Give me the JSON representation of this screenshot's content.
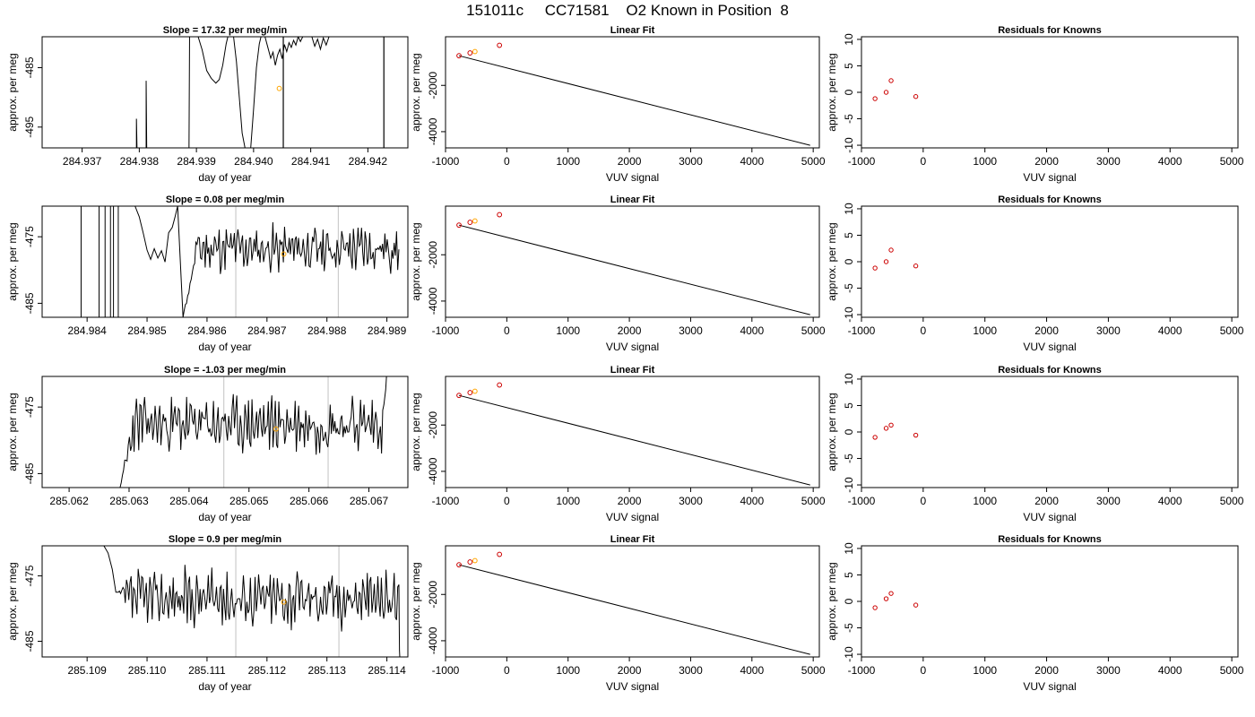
{
  "figure": {
    "title": "151011c     CC71581    O2 Known in Position  8"
  },
  "chart_data": [
    {
      "type": "line",
      "panel": "timeseries",
      "row": 1,
      "title": "Slope =  17.32  per meg/min",
      "xlabel": "day of year",
      "ylabel": "approx. per meg",
      "xlim": [
        284.9363,
        284.9427
      ],
      "ylim": [
        -498.5,
        -479.8
      ],
      "xticks": [
        284.937,
        284.938,
        284.939,
        284.94,
        284.941,
        284.942
      ],
      "xtick_labels": [
        "284.937",
        "284.938",
        "284.939",
        "284.940",
        "284.941",
        "284.942"
      ],
      "yticks": [
        -485,
        -495
      ],
      "ytick_labels": [
        "-485",
        "-495"
      ],
      "vlines": [
        284.94052,
        284.94228
      ],
      "vline_color": "#000000",
      "known_point": {
        "x": 284.94045,
        "y": -488.5,
        "color": "#ffa500"
      },
      "series": [
        {
          "color": "#000000",
          "points": [
            [
              284.93795,
              -498.5
            ],
            [
              284.93795,
              -493.6
            ],
            [
              284.93796,
              -498.5
            ],
            [
              284.93812,
              -498.5
            ],
            [
              284.93812,
              -487.2
            ],
            [
              284.93813,
              -498.5
            ],
            [
              284.93887,
              -498.5
            ],
            [
              284.93888,
              -479.8
            ],
            [
              284.93903,
              -479.8
            ],
            [
              284.9391,
              -482.0
            ],
            [
              284.93918,
              -485.5
            ],
            [
              284.93926,
              -486.8
            ],
            [
              284.93934,
              -487.6
            ],
            [
              284.9394,
              -487.0
            ],
            [
              284.93946,
              -484.6
            ],
            [
              284.93952,
              -481.0
            ],
            [
              284.93955,
              -479.8
            ],
            [
              284.93965,
              -479.8
            ],
            [
              284.9397,
              -484.0
            ],
            [
              284.93975,
              -490.0
            ],
            [
              284.9398,
              -496.0
            ],
            [
              284.93985,
              -498.5
            ],
            [
              284.93995,
              -498.5
            ],
            [
              284.94,
              -492.0
            ],
            [
              284.94005,
              -485.0
            ],
            [
              284.9401,
              -481.0
            ],
            [
              284.94013,
              -479.8
            ],
            [
              284.9402,
              -479.8
            ],
            [
              284.94025,
              -481.6
            ],
            [
              284.9403,
              -483.4
            ],
            [
              284.94034,
              -482.4
            ],
            [
              284.94038,
              -484.6
            ],
            [
              284.94042,
              -482.9
            ],
            [
              284.94046,
              -481.9
            ],
            [
              284.9405,
              -483.5
            ],
            [
              284.94054,
              -481.1
            ],
            [
              284.94058,
              -482.3
            ],
            [
              284.94062,
              -480.8
            ],
            [
              284.94066,
              -481.6
            ],
            [
              284.9407,
              -480.4
            ],
            [
              284.94074,
              -481.2
            ],
            [
              284.94078,
              -479.8
            ],
            [
              284.94082,
              -480.6
            ],
            [
              284.94086,
              -479.8
            ],
            [
              284.94102,
              -479.8
            ],
            [
              284.94107,
              -481.4
            ],
            [
              284.94112,
              -480.2
            ],
            [
              284.94117,
              -481.9
            ],
            [
              284.94122,
              -480.0
            ],
            [
              284.94127,
              -481.2
            ],
            [
              284.94132,
              -479.8
            ]
          ]
        }
      ]
    },
    {
      "type": "line",
      "panel": "timeseries",
      "row": 2,
      "title": "Slope =  0.08  per meg/min",
      "xlabel": "day of year",
      "ylabel": "approx. per meg",
      "xlim": [
        284.98325,
        284.98935
      ],
      "ylim": [
        -487.1,
        -470.4
      ],
      "xticks": [
        284.984,
        284.985,
        284.986,
        284.987,
        284.988,
        284.989
      ],
      "xtick_labels": [
        "284.984",
        "284.985",
        "284.986",
        "284.987",
        "284.988",
        "284.989"
      ],
      "yticks": [
        -475,
        -485
      ],
      "ytick_labels": [
        "-475",
        "-485"
      ],
      "vlines": [
        284.98648,
        284.98819
      ],
      "vline_color": "#cccccc",
      "spikes": [
        284.9839,
        284.9842,
        284.9843,
        284.98439,
        284.98444,
        284.98452
      ],
      "known_point": {
        "x": 284.98728,
        "y": -477.6,
        "color": "#ffa500"
      },
      "series": [
        {
          "color": "#000000",
          "seed": 11,
          "start": 284.9848,
          "end": 284.9892,
          "segments": [
            [
              284.9848,
              -470.4
            ],
            [
              284.98487,
              -472.0
            ],
            [
              284.98494,
              -474.6
            ],
            [
              284.985,
              -477.0
            ],
            [
              284.98506,
              -478.4
            ],
            [
              284.98512,
              -476.8
            ],
            [
              284.98518,
              -478.2
            ],
            [
              284.98524,
              -477.1
            ],
            [
              284.9853,
              -478.8
            ],
            [
              284.98536,
              -474.4
            ],
            [
              284.98542,
              -473.6
            ],
            [
              284.98547,
              -471.9
            ],
            [
              284.98551,
              -470.4
            ]
          ],
          "baseline_from": 284.9856,
          "baseline_start": -487.1,
          "base": -476.8,
          "amp": 2.6
        }
      ]
    },
    {
      "type": "line",
      "panel": "timeseries",
      "row": 3,
      "title": "Slope =  -1.03  per meg/min",
      "xlabel": "day of year",
      "ylabel": "approx. per meg",
      "xlim": [
        285.06155,
        285.06765
      ],
      "ylim": [
        -487.1,
        -470.4
      ],
      "xticks": [
        285.062,
        285.063,
        285.064,
        285.065,
        285.066,
        285.067
      ],
      "xtick_labels": [
        "285.062",
        "285.063",
        "285.064",
        "285.065",
        "285.066",
        "285.067"
      ],
      "yticks": [
        -475,
        -485
      ],
      "ytick_labels": [
        "-475",
        "-485"
      ],
      "vlines": [
        285.06458,
        285.06632
      ],
      "vline_color": "#cccccc",
      "known_point": {
        "x": 285.06545,
        "y": -478.3,
        "color": "#ffa500"
      },
      "series": [
        {
          "color": "#000000",
          "seed": 23,
          "start": 285.06285,
          "end": 285.06725,
          "segments": [],
          "baseline_from": 285.06285,
          "baseline_start": -487.1,
          "base": -477.6,
          "amp": 3.0,
          "tail_up": true
        }
      ]
    },
    {
      "type": "line",
      "panel": "timeseries",
      "row": 4,
      "title": "Slope =  0.9  per meg/min",
      "xlabel": "day of year",
      "ylabel": "approx. per meg",
      "xlim": [
        285.10825,
        285.11435
      ],
      "ylim": [
        -487.4,
        -470.4
      ],
      "xticks": [
        285.109,
        285.11,
        285.111,
        285.112,
        285.113,
        285.114
      ],
      "xtick_labels": [
        "285.109",
        "285.110",
        "285.111",
        "285.112",
        "285.113",
        "285.114"
      ],
      "yticks": [
        -475,
        -485
      ],
      "ytick_labels": [
        "-475",
        "-485"
      ],
      "vlines": [
        285.11148,
        285.1132
      ],
      "vline_color": "#cccccc",
      "known_point": {
        "x": 285.11228,
        "y": -479.0,
        "color": "#ffa500"
      },
      "series": [
        {
          "color": "#000000",
          "seed": 37,
          "start": 285.10952,
          "end": 285.1142,
          "segments": [
            [
              285.10928,
              -470.4
            ],
            [
              285.10935,
              -471.5
            ],
            [
              285.10942,
              -474.0
            ],
            [
              285.10948,
              -477.5
            ]
          ],
          "baseline_from": 285.10952,
          "baseline_start": -477.5,
          "base": -478.4,
          "amp": 3.2,
          "tail_down": true
        }
      ]
    },
    {
      "type": "scatter",
      "panel": "fit",
      "row": 1,
      "title": "Linear Fit",
      "xlabel": "VUV signal",
      "ylabel": "approx. per meg",
      "xlim": [
        -1000,
        5100
      ],
      "ylim": [
        -4700,
        100
      ],
      "xticks": [
        -1000,
        0,
        1000,
        2000,
        3000,
        4000,
        5000
      ],
      "xtick_labels": [
        "-1000",
        "0",
        "1000",
        "2000",
        "3000",
        "4000",
        "5000"
      ],
      "yticks": [
        -2000,
        -4000
      ],
      "ytick_labels": [
        "-2000",
        "-4000"
      ],
      "fit_line": [
        [
          -780,
          -720
        ],
        [
          4950,
          -4590
        ]
      ],
      "points": [
        [
          -780,
          -720,
          "#cc0000"
        ],
        [
          -600,
          -600,
          "#cc0000"
        ],
        [
          -520,
          -540,
          "#ffa500"
        ],
        [
          -120,
          -270,
          "#cc0000"
        ]
      ]
    },
    {
      "type": "scatter",
      "panel": "fit",
      "row": 2,
      "title": "Linear Fit",
      "xlabel": "VUV signal",
      "ylabel": "approx. per meg",
      "xlim": [
        -1000,
        5100
      ],
      "ylim": [
        -4700,
        100
      ],
      "xticks": [
        -1000,
        0,
        1000,
        2000,
        3000,
        4000,
        5000
      ],
      "xtick_labels": [
        "-1000",
        "0",
        "1000",
        "2000",
        "3000",
        "4000",
        "5000"
      ],
      "yticks": [
        -2000,
        -4000
      ],
      "ytick_labels": [
        "-2000",
        "-4000"
      ],
      "fit_line": [
        [
          -780,
          -720
        ],
        [
          4950,
          -4590
        ]
      ],
      "points": [
        [
          -780,
          -720,
          "#cc0000"
        ],
        [
          -600,
          -600,
          "#cc0000"
        ],
        [
          -520,
          -540,
          "#ffa500"
        ],
        [
          -120,
          -270,
          "#cc0000"
        ]
      ]
    },
    {
      "type": "scatter",
      "panel": "fit",
      "row": 3,
      "title": "Linear Fit",
      "xlabel": "VUV signal",
      "ylabel": "approx. per meg",
      "xlim": [
        -1000,
        5100
      ],
      "ylim": [
        -4700,
        100
      ],
      "xticks": [
        -1000,
        0,
        1000,
        2000,
        3000,
        4000,
        5000
      ],
      "xtick_labels": [
        "-1000",
        "0",
        "1000",
        "2000",
        "3000",
        "4000",
        "5000"
      ],
      "yticks": [
        -2000,
        -4000
      ],
      "ytick_labels": [
        "-2000",
        "-4000"
      ],
      "fit_line": [
        [
          -780,
          -720
        ],
        [
          4950,
          -4590
        ]
      ],
      "points": [
        [
          -780,
          -720,
          "#cc0000"
        ],
        [
          -600,
          -600,
          "#cc0000"
        ],
        [
          -520,
          -540,
          "#ffa500"
        ],
        [
          -120,
          -270,
          "#cc0000"
        ]
      ]
    },
    {
      "type": "scatter",
      "panel": "fit",
      "row": 4,
      "title": "Linear Fit",
      "xlabel": "VUV signal",
      "ylabel": "approx. per meg",
      "xlim": [
        -1000,
        5100
      ],
      "ylim": [
        -4700,
        100
      ],
      "xticks": [
        -1000,
        0,
        1000,
        2000,
        3000,
        4000,
        5000
      ],
      "xtick_labels": [
        "-1000",
        "0",
        "1000",
        "2000",
        "3000",
        "4000",
        "5000"
      ],
      "yticks": [
        -2000,
        -4000
      ],
      "ytick_labels": [
        "-2000",
        "-4000"
      ],
      "fit_line": [
        [
          -780,
          -720
        ],
        [
          4950,
          -4590
        ]
      ],
      "points": [
        [
          -780,
          -720,
          "#cc0000"
        ],
        [
          -600,
          -600,
          "#cc0000"
        ],
        [
          -520,
          -540,
          "#ffa500"
        ],
        [
          -120,
          -270,
          "#cc0000"
        ]
      ]
    },
    {
      "type": "scatter",
      "panel": "residuals",
      "row": 1,
      "title": "Residuals for Knowns",
      "xlabel": "VUV signal",
      "ylabel": "approx. per meg",
      "xlim": [
        -1000,
        5100
      ],
      "ylim": [
        -10.5,
        10.5
      ],
      "xticks": [
        -1000,
        0,
        1000,
        2000,
        3000,
        4000,
        5000
      ],
      "xtick_labels": [
        "-1000",
        "0",
        "1000",
        "2000",
        "3000",
        "4000",
        "5000"
      ],
      "yticks": [
        10,
        5,
        0,
        -5,
        -10
      ],
      "ytick_labels": [
        "10",
        "5",
        "0",
        "-5",
        "-10"
      ],
      "points": [
        [
          -780,
          -1.2
        ],
        [
          -600,
          0.0
        ],
        [
          -520,
          2.2
        ],
        [
          -120,
          -0.8
        ]
      ],
      "point_color": "#cc0000"
    },
    {
      "type": "scatter",
      "panel": "residuals",
      "row": 2,
      "title": "Residuals for Knowns",
      "xlabel": "VUV signal",
      "ylabel": "approx. per meg",
      "xlim": [
        -1000,
        5100
      ],
      "ylim": [
        -10.5,
        10.5
      ],
      "xticks": [
        -1000,
        0,
        1000,
        2000,
        3000,
        4000,
        5000
      ],
      "xtick_labels": [
        "-1000",
        "0",
        "1000",
        "2000",
        "3000",
        "4000",
        "5000"
      ],
      "yticks": [
        10,
        5,
        0,
        -5,
        -10
      ],
      "ytick_labels": [
        "10",
        "5",
        "0",
        "-5",
        "-10"
      ],
      "points": [
        [
          -780,
          -1.2
        ],
        [
          -600,
          0.0
        ],
        [
          -520,
          2.2
        ],
        [
          -120,
          -0.8
        ]
      ],
      "point_color": "#cc0000"
    },
    {
      "type": "scatter",
      "panel": "residuals",
      "row": 3,
      "title": "Residuals for Knowns",
      "xlabel": "VUV signal",
      "ylabel": "approx. per meg",
      "xlim": [
        -1000,
        5100
      ],
      "ylim": [
        -10.5,
        10.5
      ],
      "xticks": [
        -1000,
        0,
        1000,
        2000,
        3000,
        4000,
        5000
      ],
      "xtick_labels": [
        "-1000",
        "0",
        "1000",
        "2000",
        "3000",
        "4000",
        "5000"
      ],
      "yticks": [
        10,
        5,
        0,
        -5,
        -10
      ],
      "ytick_labels": [
        "10",
        "5",
        "0",
        "-5",
        "-10"
      ],
      "points": [
        [
          -780,
          -1.0
        ],
        [
          -600,
          0.7
        ],
        [
          -520,
          1.3
        ],
        [
          -120,
          -0.6
        ]
      ],
      "point_color": "#cc0000"
    },
    {
      "type": "scatter",
      "panel": "residuals",
      "row": 4,
      "title": "Residuals for Knowns",
      "xlabel": "VUV signal",
      "ylabel": "approx. per meg",
      "xlim": [
        -1000,
        5100
      ],
      "ylim": [
        -10.5,
        10.5
      ],
      "xticks": [
        -1000,
        0,
        1000,
        2000,
        3000,
        4000,
        5000
      ],
      "xtick_labels": [
        "-1000",
        "0",
        "1000",
        "2000",
        "3000",
        "4000",
        "5000"
      ],
      "yticks": [
        10,
        5,
        0,
        -5,
        -10
      ],
      "ytick_labels": [
        "10",
        "5",
        "0",
        "-5",
        "-10"
      ],
      "points": [
        [
          -780,
          -1.2
        ],
        [
          -600,
          0.5
        ],
        [
          -520,
          1.5
        ],
        [
          -120,
          -0.7
        ]
      ],
      "point_color": "#cc0000"
    }
  ]
}
